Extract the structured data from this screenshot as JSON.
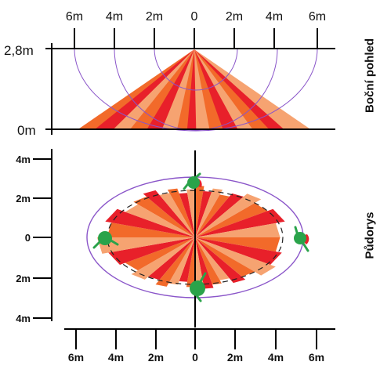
{
  "side_view": {
    "title": "Boční pohled",
    "top_ticks": [
      "6m",
      "4m",
      "2m",
      "0",
      "2m",
      "4m",
      "6m"
    ],
    "height_top_label": "2,8m",
    "height_bottom_label": "0m"
  },
  "floor_plan": {
    "title": "Půdorys",
    "y_ticks": [
      "4m",
      "2m",
      "0",
      "2m",
      "4m"
    ],
    "bottom_ticks": [
      "6m",
      "4m",
      "2m",
      "0",
      "2m",
      "4m",
      "6m"
    ]
  },
  "colors": {
    "ray_dark": "#e8202a",
    "ray_mid": "#f26a2a",
    "ray_light": "#f6a371",
    "range_arc": "#8a55c9",
    "person": "#2aa34a",
    "axis": "#000000"
  }
}
